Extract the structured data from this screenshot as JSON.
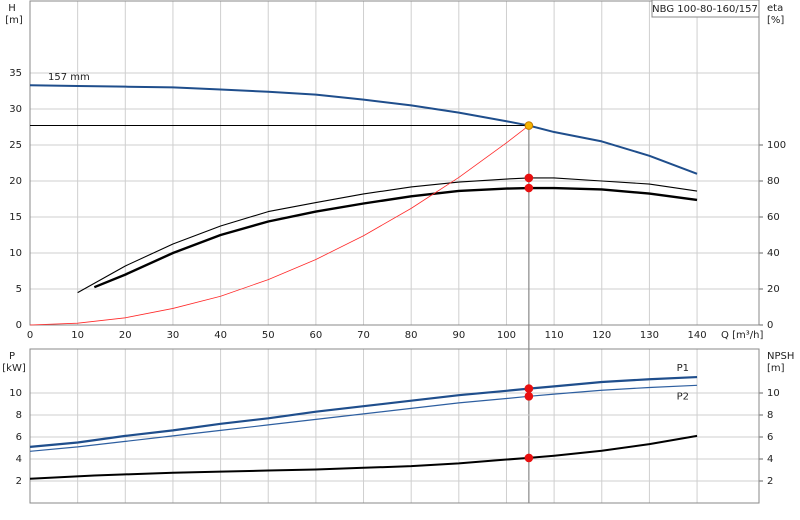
{
  "chart_data": [
    {
      "type": "line",
      "title": "NBG 100-80-160/157",
      "ylabel": "H",
      "yunit": "[m]",
      "y2label": "eta",
      "y2unit": "[%]",
      "xlabel": "Q [m³/h]",
      "xlim": [
        0,
        153
      ],
      "xticks": [
        0,
        10,
        20,
        30,
        40,
        50,
        60,
        70,
        80,
        90,
        100,
        110,
        120,
        130,
        140
      ],
      "ylim": [
        0,
        45
      ],
      "yticks": [
        0,
        5,
        10,
        15,
        20,
        25,
        30,
        35
      ],
      "y2lim": [
        0,
        180
      ],
      "y2ticks": [
        0,
        20,
        40,
        60,
        80,
        100
      ],
      "grid": true,
      "series": [
        {
          "name": "157 mm",
          "color": "#1f4e8c",
          "x": [
            0,
            10,
            20,
            30,
            40,
            50,
            60,
            70,
            80,
            90,
            100,
            104.7,
            110,
            120,
            130,
            140
          ],
          "values": [
            33.3,
            33.2,
            33.1,
            33.0,
            32.7,
            32.4,
            32.0,
            31.3,
            30.5,
            29.5,
            28.3,
            27.7,
            26.8,
            25.5,
            23.5,
            21.0
          ]
        },
        {
          "color": "#000000",
          "axis": "y2",
          "x": [
            10,
            20,
            30,
            40,
            50,
            60,
            70,
            80,
            90,
            100,
            104.7,
            110,
            120,
            130,
            140
          ],
          "values": [
            18,
            32.8,
            45,
            55,
            63,
            68,
            72.8,
            76.7,
            79.4,
            81.1,
            81.7,
            81.7,
            80,
            78.3,
            74.4
          ]
        },
        {
          "color": "#000000",
          "axis": "y2",
          "x": [
            13.5,
            20,
            30,
            40,
            50,
            60,
            70,
            80,
            90,
            100,
            104.7,
            110,
            120,
            130,
            140
          ],
          "values": [
            21,
            28,
            40,
            50,
            57.5,
            63,
            67.5,
            71.5,
            74.5,
            75.8,
            76.1,
            76.1,
            75.3,
            73,
            69.5
          ]
        },
        {
          "color": "#ff2a2a",
          "x": [
            0,
            10,
            20,
            30,
            40,
            50,
            60,
            70,
            80,
            90,
            100,
            104.7
          ],
          "values": [
            0,
            0.25,
            1.0,
            2.3,
            4.0,
            6.3,
            9.1,
            12.4,
            16.2,
            20.5,
            25.3,
            27.7
          ]
        }
      ],
      "points": [
        {
          "x": 104.7,
          "y": 27.7,
          "color": "#f5b400"
        },
        {
          "x": 104.7,
          "y": 81.7,
          "axis": "y2",
          "color": "#e81010"
        },
        {
          "x": 104.7,
          "y": 76.1,
          "axis": "y2",
          "color": "#e81010"
        }
      ]
    },
    {
      "type": "line",
      "ylabel": "P",
      "yunit": "[kW]",
      "y2label": "NPSH",
      "y2unit": "[m]",
      "xlim": [
        0,
        153
      ],
      "xticks": [
        0,
        10,
        20,
        30,
        40,
        50,
        60,
        70,
        80,
        90,
        100,
        110,
        120,
        130,
        140
      ],
      "ylim": [
        0,
        14
      ],
      "yticks": [
        2,
        4,
        6,
        8,
        10
      ],
      "y2lim": [
        0,
        14
      ],
      "y2ticks": [
        2,
        4,
        6,
        8,
        10
      ],
      "grid": true,
      "series": [
        {
          "name": "P1",
          "color": "#1f4e8c",
          "x": [
            0,
            10,
            20,
            30,
            40,
            50,
            60,
            70,
            80,
            90,
            100,
            104.7,
            110,
            120,
            130,
            140
          ],
          "values": [
            5.1,
            5.5,
            6.1,
            6.6,
            7.2,
            7.7,
            8.3,
            8.8,
            9.3,
            9.8,
            10.2,
            10.4,
            10.6,
            11.0,
            11.25,
            11.45
          ]
        },
        {
          "name": "P2",
          "color": "#2e5fa0",
          "x": [
            0,
            10,
            20,
            30,
            40,
            50,
            60,
            70,
            80,
            90,
            100,
            104.7,
            110,
            120,
            130,
            140
          ],
          "values": [
            4.7,
            5.1,
            5.6,
            6.1,
            6.6,
            7.1,
            7.6,
            8.1,
            8.6,
            9.1,
            9.5,
            9.7,
            9.9,
            10.25,
            10.5,
            10.7
          ]
        },
        {
          "color": "#000000",
          "axis": "y2",
          "x": [
            0,
            13.5,
            20,
            30,
            40,
            50,
            60,
            70,
            80,
            90,
            100,
            104.7,
            110,
            120,
            130,
            140
          ],
          "values": [
            2.2,
            2.5,
            2.6,
            2.75,
            2.85,
            2.95,
            3.05,
            3.2,
            3.35,
            3.6,
            3.95,
            4.1,
            4.3,
            4.75,
            5.35,
            6.1
          ]
        }
      ],
      "points": [
        {
          "x": 104.7,
          "y": 10.4,
          "color": "#e81010"
        },
        {
          "x": 104.7,
          "y": 9.7,
          "color": "#e81010"
        },
        {
          "x": 104.7,
          "y": 4.1,
          "axis": "y2",
          "color": "#e81010"
        }
      ]
    }
  ]
}
